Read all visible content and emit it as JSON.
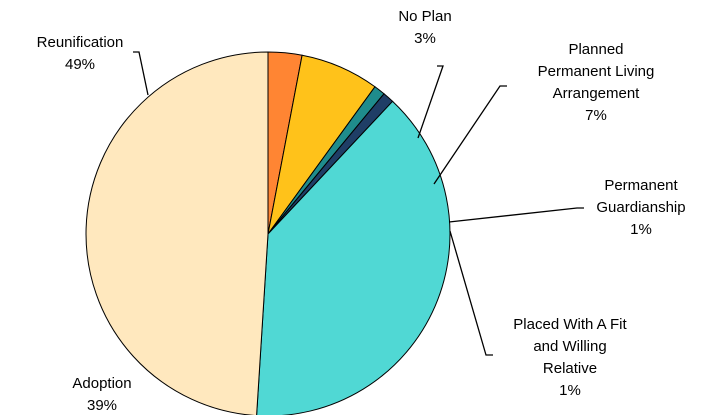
{
  "chart_data": {
    "type": "pie",
    "start_angle_deg": 90,
    "direction": "clockwise",
    "legend": "none",
    "slices": [
      {
        "label_lines": [
          "No Plan"
        ],
        "value_label": "3%",
        "value": 3,
        "color": "#FF8533"
      },
      {
        "label_lines": [
          "Planned",
          "Permanent Living",
          "Arrangement"
        ],
        "value_label": "7%",
        "value": 7,
        "color": "#FFC21A"
      },
      {
        "label_lines": [
          "Permanent",
          "Guardianship"
        ],
        "value_label": "1%",
        "value": 1,
        "color": "#1F8C8C"
      },
      {
        "label_lines": [
          "Placed With A Fit",
          "and Willing",
          "Relative"
        ],
        "value_label": "1%",
        "value": 1,
        "color": "#1F3E66"
      },
      {
        "label_lines": [
          "Adoption"
        ],
        "value_label": "39%",
        "value": 39,
        "color": "#50D8D4"
      },
      {
        "label_lines": [
          "Reunification"
        ],
        "value_label": "49%",
        "value": 49,
        "color": "#FFE8BE"
      }
    ]
  }
}
